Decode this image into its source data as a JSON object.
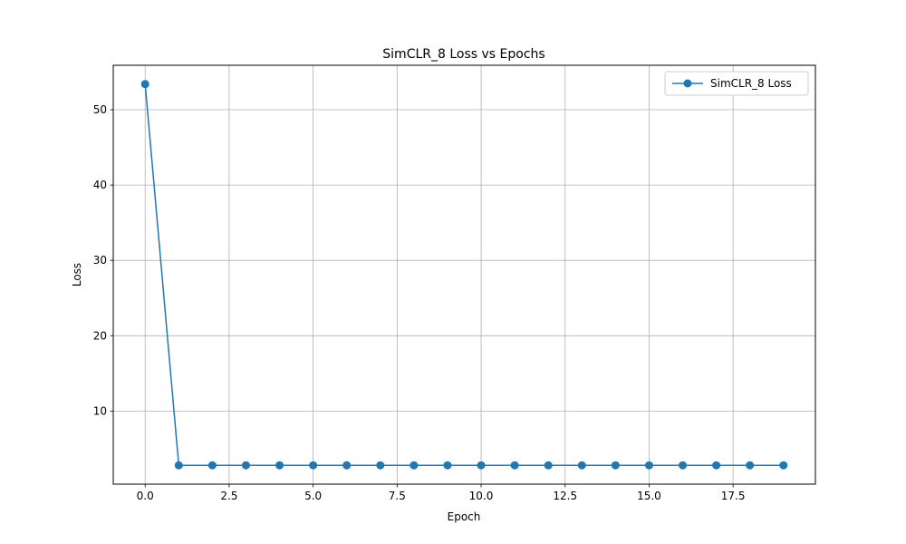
{
  "chart_data": {
    "type": "line",
    "title": "SimCLR_8 Loss vs Epochs",
    "xlabel": "Epoch",
    "ylabel": "Loss",
    "xlim": [
      -0.95,
      19.95
    ],
    "ylim": [
      0.3,
      55.9
    ],
    "xticks": [
      0,
      2.5,
      5,
      7.5,
      10,
      12.5,
      15,
      17.5
    ],
    "xtick_labels": [
      "0.0",
      "2.5",
      "5.0",
      "7.5",
      "10.0",
      "12.5",
      "15.0",
      "17.5"
    ],
    "yticks": [
      10,
      20,
      30,
      40,
      50
    ],
    "ytick_labels": [
      "10",
      "20",
      "30",
      "40",
      "50"
    ],
    "grid": true,
    "legend_position": "top-right",
    "series": [
      {
        "name": "SimCLR_8 Loss",
        "color": "#1f77b4",
        "marker": "circle",
        "x": [
          0,
          1,
          2,
          3,
          4,
          5,
          6,
          7,
          8,
          9,
          10,
          11,
          12,
          13,
          14,
          15,
          16,
          17,
          18,
          19
        ],
        "y": [
          53.4,
          2.8,
          2.8,
          2.8,
          2.8,
          2.8,
          2.8,
          2.8,
          2.8,
          2.8,
          2.8,
          2.8,
          2.8,
          2.8,
          2.8,
          2.8,
          2.8,
          2.8,
          2.8,
          2.8
        ]
      }
    ]
  }
}
